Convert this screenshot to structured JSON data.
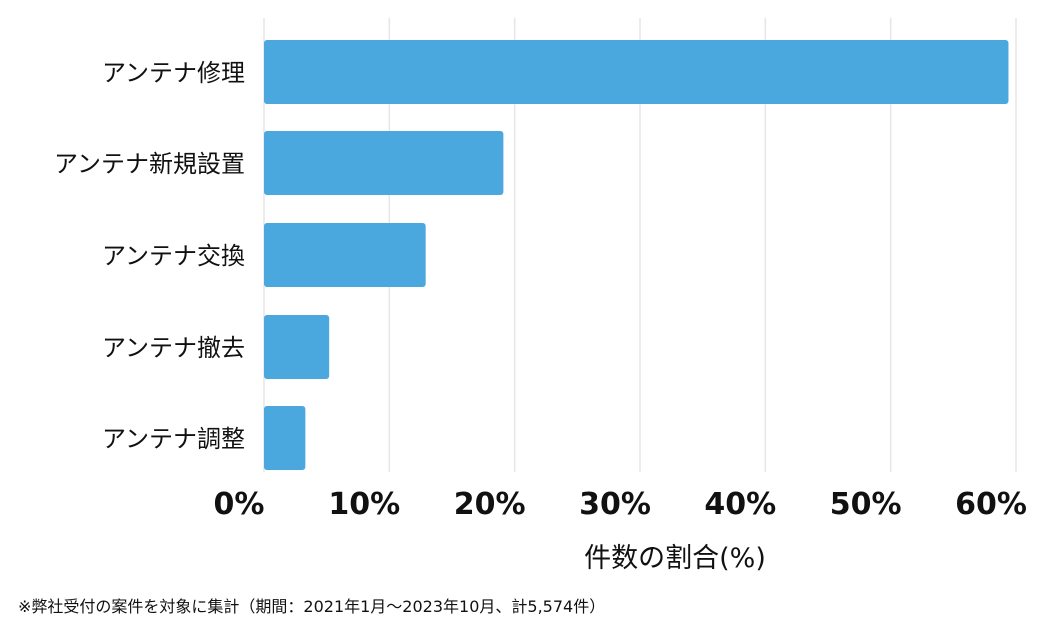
{
  "chart_data": {
    "type": "bar",
    "orientation": "horizontal",
    "categories": [
      "アンテナ修理",
      "アンテナ新規設置",
      "アンテナ交換",
      "アンテナ撤去",
      "アンテナ調整"
    ],
    "values": [
      59.4,
      19.1,
      12.9,
      5.2,
      3.3
    ],
    "xlabel": "件数の割合(%)",
    "xlim": [
      0,
      60
    ],
    "xticks": [
      0,
      10,
      20,
      30,
      40,
      50,
      60
    ],
    "xtick_labels": [
      "0%",
      "10%",
      "20%",
      "30%",
      "40%",
      "50%",
      "60%"
    ],
    "grid": "vertical",
    "bar_color": "#4aa8df",
    "grid_color": "#e6e6e6"
  },
  "footnote": "※弊社受付の案件を対象に集計（期間：2021年1月〜2023年10月、計5,574件）"
}
